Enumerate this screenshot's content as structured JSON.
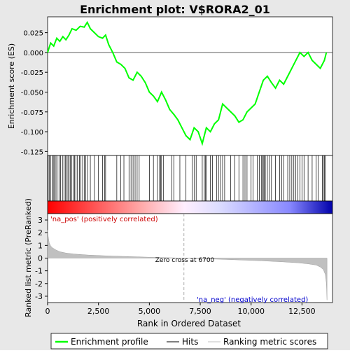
{
  "chart_data": {
    "type": "line",
    "title": "Enrichment plot: V$RORA2_01",
    "top_panel": {
      "ylabel": "Enrichment score (ES)",
      "ylim": [
        -0.13,
        0.045
      ],
      "yticks": [
        0.025,
        0.0,
        -0.025,
        -0.05,
        -0.075,
        -0.1,
        -0.125
      ],
      "ytick_labels": [
        "0.025",
        "0.000",
        "-0.025",
        "-0.050",
        "-0.075",
        "-0.100",
        "-0.125"
      ],
      "series": [
        {
          "name": "Enrichment profile",
          "color": "#00ff00",
          "x": [
            0,
            150,
            300,
            450,
            600,
            750,
            900,
            1050,
            1200,
            1400,
            1600,
            1800,
            1950,
            2100,
            2300,
            2500,
            2700,
            2850,
            3000,
            3200,
            3400,
            3600,
            3800,
            4000,
            4200,
            4400,
            4600,
            4800,
            5000,
            5200,
            5400,
            5600,
            5800,
            6000,
            6200,
            6400,
            6600,
            6800,
            7000,
            7200,
            7400,
            7600,
            7800,
            8000,
            8200,
            8400,
            8600,
            8800,
            9000,
            9200,
            9400,
            9600,
            9800,
            10000,
            10200,
            10400,
            10600,
            10800,
            11000,
            11200,
            11400,
            11600,
            11800,
            12000,
            12200,
            12400,
            12600,
            12800,
            13000,
            13200,
            13400,
            13600,
            13700
          ],
          "y": [
            0.0,
            0.012,
            0.008,
            0.018,
            0.014,
            0.02,
            0.016,
            0.022,
            0.03,
            0.028,
            0.033,
            0.032,
            0.038,
            0.03,
            0.025,
            0.02,
            0.018,
            0.022,
            0.01,
            0.0,
            -0.012,
            -0.015,
            -0.02,
            -0.032,
            -0.035,
            -0.025,
            -0.03,
            -0.038,
            -0.05,
            -0.055,
            -0.062,
            -0.05,
            -0.06,
            -0.072,
            -0.078,
            -0.085,
            -0.095,
            -0.105,
            -0.11,
            -0.095,
            -0.1,
            -0.115,
            -0.095,
            -0.1,
            -0.09,
            -0.085,
            -0.065,
            -0.07,
            -0.075,
            -0.08,
            -0.088,
            -0.085,
            -0.075,
            -0.07,
            -0.065,
            -0.05,
            -0.035,
            -0.03,
            -0.038,
            -0.045,
            -0.035,
            -0.04,
            -0.03,
            -0.02,
            -0.01,
            0.0,
            -0.005,
            0.0,
            -0.01,
            -0.015,
            -0.02,
            -0.01,
            0.0
          ]
        }
      ]
    },
    "hits_panel": {
      "legend_label": "Hits",
      "hit_positions": [
        30,
        80,
        160,
        220,
        280,
        330,
        410,
        470,
        560,
        640,
        730,
        800,
        870,
        940,
        1000,
        1060,
        1120,
        1190,
        1260,
        1330,
        1400,
        1470,
        1560,
        1640,
        1720,
        1800,
        1880,
        1960,
        2100,
        2300,
        2500,
        2700,
        2800,
        2850,
        3400,
        3600,
        3750,
        4000,
        4100,
        4200,
        4300,
        4400,
        4500,
        5000,
        5200,
        5400,
        5500,
        5550,
        5600,
        5700,
        6100,
        6200,
        6500,
        6800,
        7100,
        7200,
        7300,
        7600,
        7700,
        7750,
        7800,
        8000,
        8100,
        8300,
        8400,
        8500,
        8600,
        8700,
        9000,
        9200,
        9400,
        9600,
        9700,
        9800,
        10000,
        10100,
        10300,
        10400,
        10500,
        10550,
        10600,
        10650,
        10700,
        10800,
        10900,
        11000,
        11200,
        11400,
        11500,
        11600,
        11800,
        11900,
        12000,
        12100,
        12200,
        12300,
        12400,
        12500,
        12600,
        12800,
        13000,
        13200,
        13300,
        13500,
        13550,
        13600,
        13650
      ]
    },
    "bottom_panel": {
      "xlabel": "Rank in Ordered Dataset",
      "ylabel": "Ranked list metric (PreRanked)",
      "xlim": [
        0,
        14000
      ],
      "xticks": [
        0,
        2500,
        5000,
        7500,
        10000,
        12500
      ],
      "xtick_labels": [
        "0",
        "2,500",
        "5,000",
        "7,500",
        "10,000",
        "12,500"
      ],
      "ylim": [
        -3.5,
        3.5
      ],
      "yticks": [
        3,
        2,
        1,
        0,
        -1,
        -2,
        -3
      ],
      "ytick_labels": [
        "3",
        "2",
        "1",
        "0",
        "-1",
        "-2",
        "-3"
      ],
      "metric_x": [
        0,
        30,
        80,
        150,
        250,
        400,
        600,
        900,
        1300,
        2000,
        3000,
        4000,
        5000,
        6000,
        6700,
        7500,
        8500,
        9500,
        10500,
        11500,
        12300,
        12800,
        13200,
        13400,
        13550,
        13650,
        13700,
        13730
      ],
      "metric_y": [
        2.2,
        1.7,
        1.2,
        0.95,
        0.8,
        0.65,
        0.5,
        0.4,
        0.32,
        0.24,
        0.17,
        0.12,
        0.07,
        0.03,
        0.0,
        -0.04,
        -0.09,
        -0.15,
        -0.21,
        -0.29,
        -0.37,
        -0.45,
        -0.55,
        -0.7,
        -0.9,
        -1.3,
        -2.0,
        -3.3
      ],
      "zero_cross_rank": 6700,
      "zero_cross_label": "Zero cross at 6700",
      "pos_label": "'na_pos' (positively correlated)",
      "neg_label": "'na_neg' (negatively correlated)"
    },
    "legend": {
      "placement": "bottom",
      "items": [
        {
          "label": "Enrichment profile",
          "color": "#00ff00"
        },
        {
          "label": "Hits",
          "color": "#000000"
        },
        {
          "label": "Ranking metric scores",
          "color": "#c0c0c0"
        }
      ]
    },
    "colors": {
      "profile": "#00ff00",
      "pos_label": "#cc0000",
      "neg_label": "#0000cc",
      "metric_fill": "#c0c0c0",
      "background": "#e8e8e8"
    }
  }
}
